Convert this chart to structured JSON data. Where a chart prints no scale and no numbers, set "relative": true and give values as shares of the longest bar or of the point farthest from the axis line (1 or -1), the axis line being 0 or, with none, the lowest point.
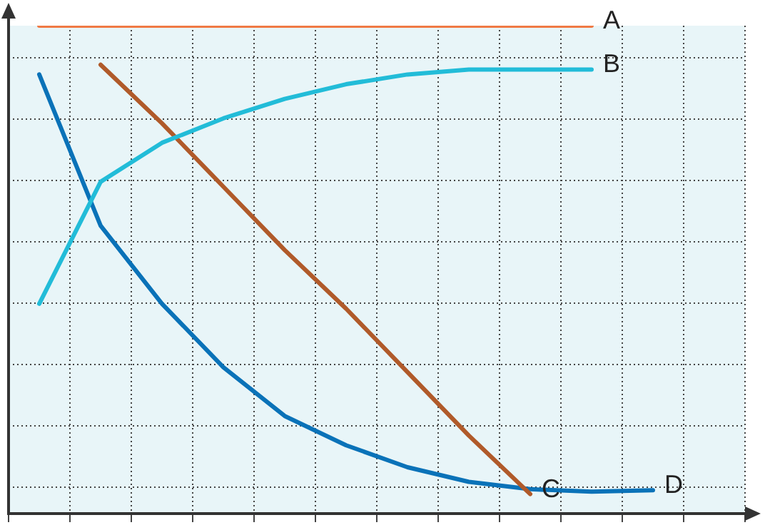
{
  "chart_data": {
    "type": "line",
    "relative": true,
    "grid": true,
    "marker": "none",
    "line_style": "solid",
    "legend": false,
    "tick_labels": false,
    "categories": [
      null,
      null,
      null,
      null,
      null,
      null,
      null,
      null,
      null,
      null,
      null,
      null
    ],
    "series": [
      {
        "name": "A",
        "color": "#f07a45",
        "values": [
          1,
          1,
          1,
          1,
          1,
          1,
          1,
          1,
          1,
          1,
          null,
          null
        ]
      },
      {
        "name": "B",
        "color": "#22bcd8",
        "values": [
          0.43,
          0.68,
          0.76,
          0.81,
          0.85,
          0.88,
          0.9,
          0.91,
          0.91,
          0.91,
          null,
          null
        ]
      },
      {
        "name": "C",
        "color": "#b05a2a",
        "values": [
          null,
          0.92,
          0.8,
          0.67,
          0.54,
          0.42,
          0.29,
          0.16,
          0.04,
          null,
          null,
          null
        ]
      },
      {
        "name": "D",
        "color": "#0a72b8",
        "values": [
          0.9,
          0.59,
          0.43,
          0.3,
          0.2,
          0.14,
          0.095,
          0.065,
          0.05,
          0.045,
          0.048,
          null
        ]
      }
    ]
  }
}
